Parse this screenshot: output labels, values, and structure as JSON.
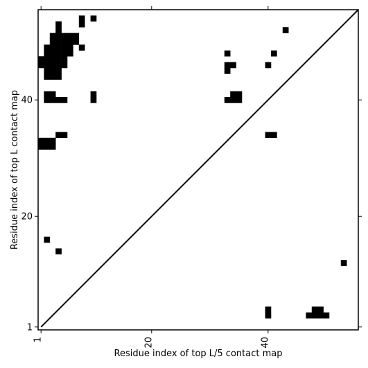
{
  "chart_data": {
    "type": "heatmap",
    "title": "",
    "xlabel": "Residue index of top L/5 contact map",
    "ylabel": "Residue index of top L contact map",
    "xlim": [
      0.5,
      55.5
    ],
    "ylim": [
      0.5,
      55.5
    ],
    "xticks": [
      {
        "value": 1,
        "label": "1"
      },
      {
        "value": 20,
        "label": "20"
      },
      {
        "value": 40,
        "label": "40"
      }
    ],
    "yticks": [
      {
        "value": 1,
        "label": "1"
      },
      {
        "value": 20,
        "label": "20"
      },
      {
        "value": 40,
        "label": "40"
      }
    ],
    "diagonal": true,
    "cell_color": "#000000",
    "cells": [
      [
        1,
        46
      ],
      [
        1,
        47
      ],
      [
        2,
        46
      ],
      [
        2,
        47
      ],
      [
        2,
        44
      ],
      [
        2,
        45
      ],
      [
        3,
        44
      ],
      [
        3,
        45
      ],
      [
        4,
        44
      ],
      [
        4,
        45
      ],
      [
        2,
        48
      ],
      [
        2,
        49
      ],
      [
        3,
        48
      ],
      [
        3,
        49
      ],
      [
        4,
        48
      ],
      [
        4,
        49
      ],
      [
        3,
        46
      ],
      [
        3,
        47
      ],
      [
        4,
        46
      ],
      [
        4,
        47
      ],
      [
        3,
        50
      ],
      [
        3,
        51
      ],
      [
        4,
        50
      ],
      [
        4,
        51
      ],
      [
        4,
        52
      ],
      [
        4,
        53
      ],
      [
        5,
        46
      ],
      [
        5,
        47
      ],
      [
        5,
        48
      ],
      [
        5,
        49
      ],
      [
        5,
        50
      ],
      [
        5,
        51
      ],
      [
        6,
        48
      ],
      [
        6,
        49
      ],
      [
        6,
        50
      ],
      [
        6,
        51
      ],
      [
        7,
        50
      ],
      [
        7,
        51
      ],
      [
        8,
        53
      ],
      [
        8,
        54
      ],
      [
        8,
        49
      ],
      [
        10,
        54
      ],
      [
        2,
        40
      ],
      [
        2,
        41
      ],
      [
        3,
        40
      ],
      [
        3,
        41
      ],
      [
        4,
        40
      ],
      [
        5,
        40
      ],
      [
        10,
        40
      ],
      [
        10,
        41
      ],
      [
        1,
        32
      ],
      [
        1,
        33
      ],
      [
        2,
        32
      ],
      [
        2,
        33
      ],
      [
        3,
        32
      ],
      [
        3,
        33
      ],
      [
        4,
        34
      ],
      [
        5,
        34
      ],
      [
        33,
        40
      ],
      [
        34,
        40
      ],
      [
        34,
        41
      ],
      [
        35,
        40
      ],
      [
        35,
        41
      ],
      [
        33,
        45
      ],
      [
        33,
        46
      ],
      [
        34,
        46
      ],
      [
        33,
        48
      ],
      [
        40,
        46
      ],
      [
        41,
        48
      ],
      [
        43,
        52
      ],
      [
        40,
        34
      ],
      [
        41,
        34
      ],
      [
        2,
        16
      ],
      [
        4,
        14
      ],
      [
        53,
        12
      ],
      [
        40,
        3
      ],
      [
        40,
        4
      ],
      [
        48,
        3
      ],
      [
        48,
        4
      ],
      [
        49,
        3
      ],
      [
        49,
        4
      ],
      [
        47,
        3
      ],
      [
        50,
        3
      ]
    ]
  }
}
